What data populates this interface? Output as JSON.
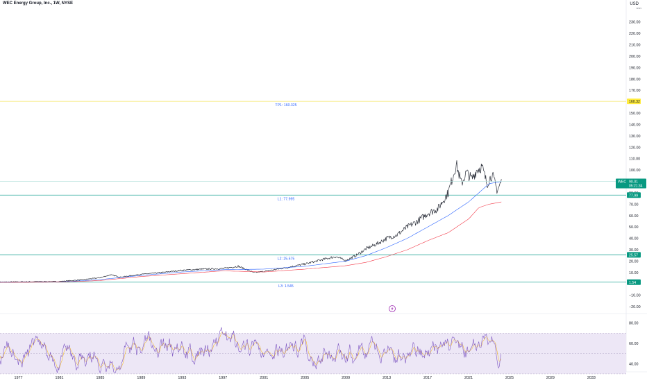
{
  "header": {
    "title": "WEC Energy Group, Inc., 1W, NYSE",
    "currency": "USD"
  },
  "colors": {
    "price": "#2a2e39",
    "ma_fast": "#2962ff",
    "ma_slow": "#f23645",
    "level_line": "#26a69a",
    "target_line": "#f6e65a",
    "label_text": "#2962ff",
    "rsi_line": "#7e57c2",
    "rsi_signal": "#f7b500",
    "rsi_band": "#ede7f6"
  },
  "chart_data": [
    {
      "type": "line",
      "title": "WEC Energy Group, Inc., 1W, NYSE",
      "y_unit": "USD",
      "ylim": [
        -26,
        242
      ],
      "xlim": [
        1975.2,
        2036.4
      ],
      "y_ticks": [
        -20,
        -10,
        10,
        20,
        30,
        40,
        50,
        60,
        70,
        80,
        90,
        100,
        110,
        120,
        130,
        140,
        150,
        160,
        170,
        180,
        190,
        200,
        210,
        220,
        230
      ],
      "y_tick_labels": [
        "−20.00",
        "−10.00",
        "10.00",
        "20.00",
        "30.00",
        "40.00",
        "50.00",
        "60.00",
        "70.00",
        "80.00",
        "90.00",
        "100.00",
        "110.00",
        "120.00",
        "130.00",
        "140.00",
        "150.00",
        "160.00",
        "170.00",
        "180.00",
        "190.00",
        "200.00",
        "210.00",
        "220.00",
        "230.00"
      ],
      "x_ticks": [
        1977,
        1981,
        1985,
        1989,
        1993,
        1997,
        2001,
        2005,
        2009,
        2013,
        2017,
        2021,
        2025,
        2029,
        2033
      ],
      "x_tick_labels": [
        "1977",
        "1981",
        "1985",
        "1989",
        "1993",
        "1997",
        "2001",
        "2005",
        "2009",
        "2013",
        "2017",
        "2021",
        "2025",
        "2029",
        "2033"
      ],
      "grid": false,
      "series": [
        {
          "key": "price",
          "x": [
            1975.2,
            1977,
            1979,
            1981,
            1983,
            1985,
            1986,
            1987,
            1989,
            1991,
            1993,
            1995,
            1997,
            1998.5,
            2000,
            2001,
            2003,
            2005,
            2007,
            2008,
            2009,
            2010,
            2011,
            2012,
            2013,
            2014,
            2015,
            2016,
            2017,
            2018,
            2019,
            2019.8,
            2020.3,
            2020.8,
            2021.3,
            2021.8,
            2022.3,
            2022.8,
            2023.3,
            2023.8,
            2024.2
          ],
          "y": [
            1.6,
            1.8,
            2.0,
            2.1,
            3.5,
            5.5,
            8.0,
            6.0,
            8.5,
            10.0,
            12.0,
            13.0,
            13.5,
            15.5,
            10.0,
            11.0,
            14.0,
            17.5,
            22.0,
            24.0,
            20.5,
            25.0,
            31.0,
            35.0,
            40.0,
            43.0,
            50.0,
            55.0,
            62.0,
            66.0,
            80.0,
            105.0,
            88.0,
            98.0,
            92.0,
            100.0,
            103.0,
            88.0,
            96.0,
            82.0,
            90.01
          ]
        },
        {
          "key": "ma_fast",
          "x": [
            1975.2,
            1981,
            1985,
            1989,
            1993,
            1997,
            2001,
            2005,
            2009,
            2011,
            2013,
            2015,
            2017,
            2019,
            2021,
            2022,
            2023,
            2024.2
          ],
          "y": [
            1.5,
            1.7,
            3.8,
            7.5,
            10.5,
            12.5,
            13.0,
            15.5,
            20.0,
            25.0,
            32.0,
            40.0,
            50.0,
            60.0,
            72.0,
            80.0,
            88.0,
            90.0
          ]
        },
        {
          "key": "ma_slow",
          "x": [
            1975.2,
            1981,
            1985,
            1989,
            1993,
            1997,
            2001,
            2005,
            2009,
            2011,
            2013,
            2015,
            2017,
            2019,
            2021,
            2022,
            2023,
            2024.2
          ],
          "y": [
            1.4,
            1.6,
            3.0,
            6.5,
            9.0,
            11.5,
            10.5,
            13.0,
            16.0,
            19.0,
            24.0,
            30.0,
            38.0,
            45.0,
            57.0,
            67.0,
            70.0,
            72.0
          ]
        }
      ],
      "horizontal_lines": [
        {
          "name": "TP1",
          "label": "TP1: 160.325",
          "value": 160.325,
          "axis_label": "160.32",
          "color": "#f6e65a"
        },
        {
          "name": "L1",
          "label": "L1: 77.995",
          "value": 77.995,
          "axis_label": "77.99",
          "color": "#26a69a"
        },
        {
          "name": "L2",
          "label": "L2: 25.575",
          "value": 25.575,
          "axis_label": "25.57",
          "color": "#26a69a"
        },
        {
          "name": "L3",
          "label": "L3: 1.545",
          "value": 1.545,
          "axis_label": "1.54",
          "color": "#26a69a"
        }
      ],
      "price_tag": {
        "symbol": "WEC",
        "price": "90.01",
        "countdown": "05:21:34",
        "value": 90.01
      },
      "annotations": [
        {
          "type": "lightning-icon",
          "x": 2023.5,
          "y": -21
        }
      ]
    },
    {
      "type": "line",
      "ylim": [
        32,
        88
      ],
      "y_ticks": [
        40,
        60,
        80
      ],
      "y_tick_labels": [
        "40.00",
        "60.00",
        "80.00"
      ],
      "bands": [
        {
          "from": 30,
          "to": 70,
          "color": "#ede7f6"
        }
      ],
      "levels": [
        30,
        50,
        70
      ],
      "series": [
        {
          "key": "rsi",
          "description": "RSI oscillating between 30 and 80"
        },
        {
          "key": "rsi_signal",
          "description": "RSI smoothing line"
        }
      ]
    }
  ]
}
